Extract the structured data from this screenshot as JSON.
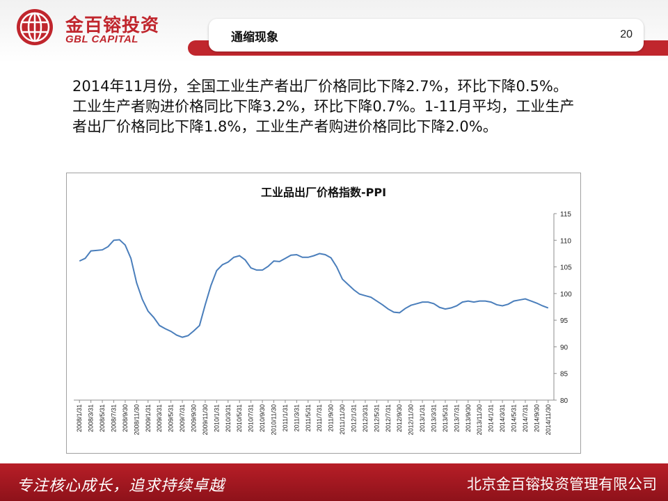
{
  "header": {
    "logo_cn": "金百镕投资",
    "logo_en": "GBL CAPITAL",
    "slide_title": "通缩现象",
    "page_number": "20",
    "accent_color": "#c0262d"
  },
  "body": {
    "paragraph": "2014年11月份，全国工业生产者出厂价格同比下降2.7%，环比下降0.5%。工业生产者购进价格同比下降3.2%，环比下降0.7%。1-11月平均，工业生产者出厂价格同比下降1.8%，工业生产者购进价格同比下降2.0%。"
  },
  "footer": {
    "slogan": "专注核心成长，追求持续卓越",
    "company": "北京金百镕投资管理有限公司"
  },
  "chart_data": {
    "type": "line",
    "title": "工业品出厂价格指数-PPI",
    "xlabel": "",
    "ylabel": "",
    "ylim": [
      80,
      115
    ],
    "yticks": [
      80,
      85,
      90,
      95,
      100,
      105,
      110,
      115
    ],
    "y_axis_position": "right",
    "grid": false,
    "legend": "none",
    "line_color": "#4a7ebb",
    "x_tick_labels": [
      "2008/1/31",
      "2008/3/31",
      "2008/5/31",
      "2008/7/31",
      "2008/9/30",
      "2008/11/30",
      "2009/1/31",
      "2009/3/31",
      "2009/5/31",
      "2009/7/31",
      "2009/9/30",
      "2009/11/30",
      "2010/1/31",
      "2010/3/31",
      "2010/5/31",
      "2010/7/31",
      "2010/9/30",
      "2010/11/30",
      "2011/1/31",
      "2011/3/31",
      "2011/5/31",
      "2011/7/31",
      "2011/9/30",
      "2011/11/30",
      "2012/1/31",
      "2012/3/31",
      "2012/5/31",
      "2012/7/31",
      "2012/9/30",
      "2012/11/30",
      "2013/1/31",
      "2013/3/31",
      "2013/5/31",
      "2013/7/31",
      "2013/9/30",
      "2013/11/30",
      "2014/1/31",
      "2014/3/31",
      "2014/5/31",
      "2014/7/31",
      "2014/9/30",
      "2014/11/30"
    ],
    "series": [
      {
        "values": [
          106.1,
          106.6,
          108.0,
          108.1,
          108.2,
          108.8,
          110.0,
          110.1,
          109.1,
          106.6,
          102.0,
          98.9,
          96.7,
          95.5,
          94.0,
          93.4,
          92.9,
          92.2,
          91.8,
          92.1,
          93.0,
          94.0,
          97.9,
          101.5,
          104.3,
          105.4,
          105.9,
          106.8,
          107.1,
          106.3,
          104.8,
          104.4,
          104.4,
          105.1,
          106.1,
          106.0,
          106.6,
          107.2,
          107.3,
          106.8,
          106.8,
          107.1,
          107.5,
          107.3,
          106.7,
          105.0,
          102.7,
          101.7,
          100.7,
          99.9,
          99.6,
          99.3,
          98.6,
          97.9,
          97.1,
          96.5,
          96.4,
          97.2,
          97.8,
          98.1,
          98.4,
          98.4,
          98.1,
          97.4,
          97.1,
          97.3,
          97.7,
          98.4,
          98.6,
          98.4,
          98.6,
          98.6,
          98.4,
          97.9,
          97.7,
          98.0,
          98.6,
          98.8,
          99.0,
          98.6,
          98.2,
          97.7,
          97.3
        ]
      }
    ]
  }
}
